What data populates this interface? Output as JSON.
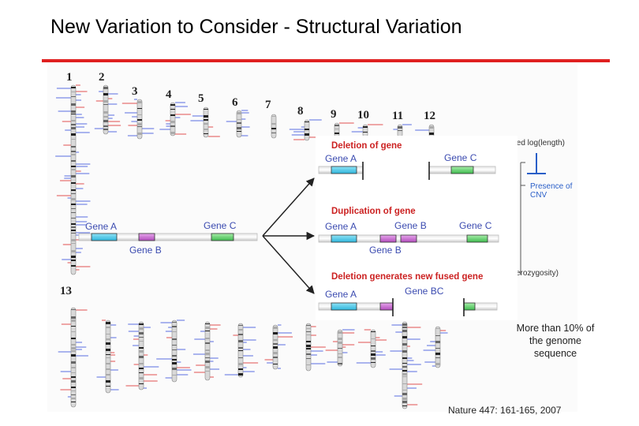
{
  "slide": {
    "title": "New Variation to Consider - Structural Variation",
    "note": "More than 10% of the genome sequence",
    "citation": "Nature 447: 161-165, 2007"
  },
  "chromosomes": {
    "top_row_labels": [
      "1",
      "2",
      "3",
      "4",
      "5",
      "6",
      "7",
      "8",
      "9",
      "10",
      "11",
      "12"
    ],
    "bottom_row_first_label": "13"
  },
  "diagram": {
    "source": {
      "gene_a": "Gene A",
      "gene_b": "Gene B",
      "gene_c": "Gene C"
    },
    "panels": [
      {
        "title": "Deletion of gene",
        "labels": [
          "Gene A",
          "Gene C"
        ]
      },
      {
        "title": "Duplication of gene",
        "labels": [
          "Gene A",
          "Gene B",
          "Gene C",
          "Gene B"
        ]
      },
      {
        "title": "Deletion generates new fused gene",
        "labels": [
          "Gene A",
          "Gene BC"
        ]
      }
    ]
  },
  "legend_fragments": {
    "scaled_log_length": "aled log(length)",
    "presence_of_cnv_1": "Presence of",
    "presence_of_cnv_2": "CNV",
    "heterozygosity": "erozygosity)"
  },
  "colors": {
    "title_rule": "#e02020",
    "gene_a": "#39c6e6",
    "gene_b": "#c060c8",
    "gene_c": "#5ad06a",
    "panel_title": "#cc2222",
    "gene_label": "#3b4bb0",
    "legend_blue": "#2a5fc8"
  }
}
